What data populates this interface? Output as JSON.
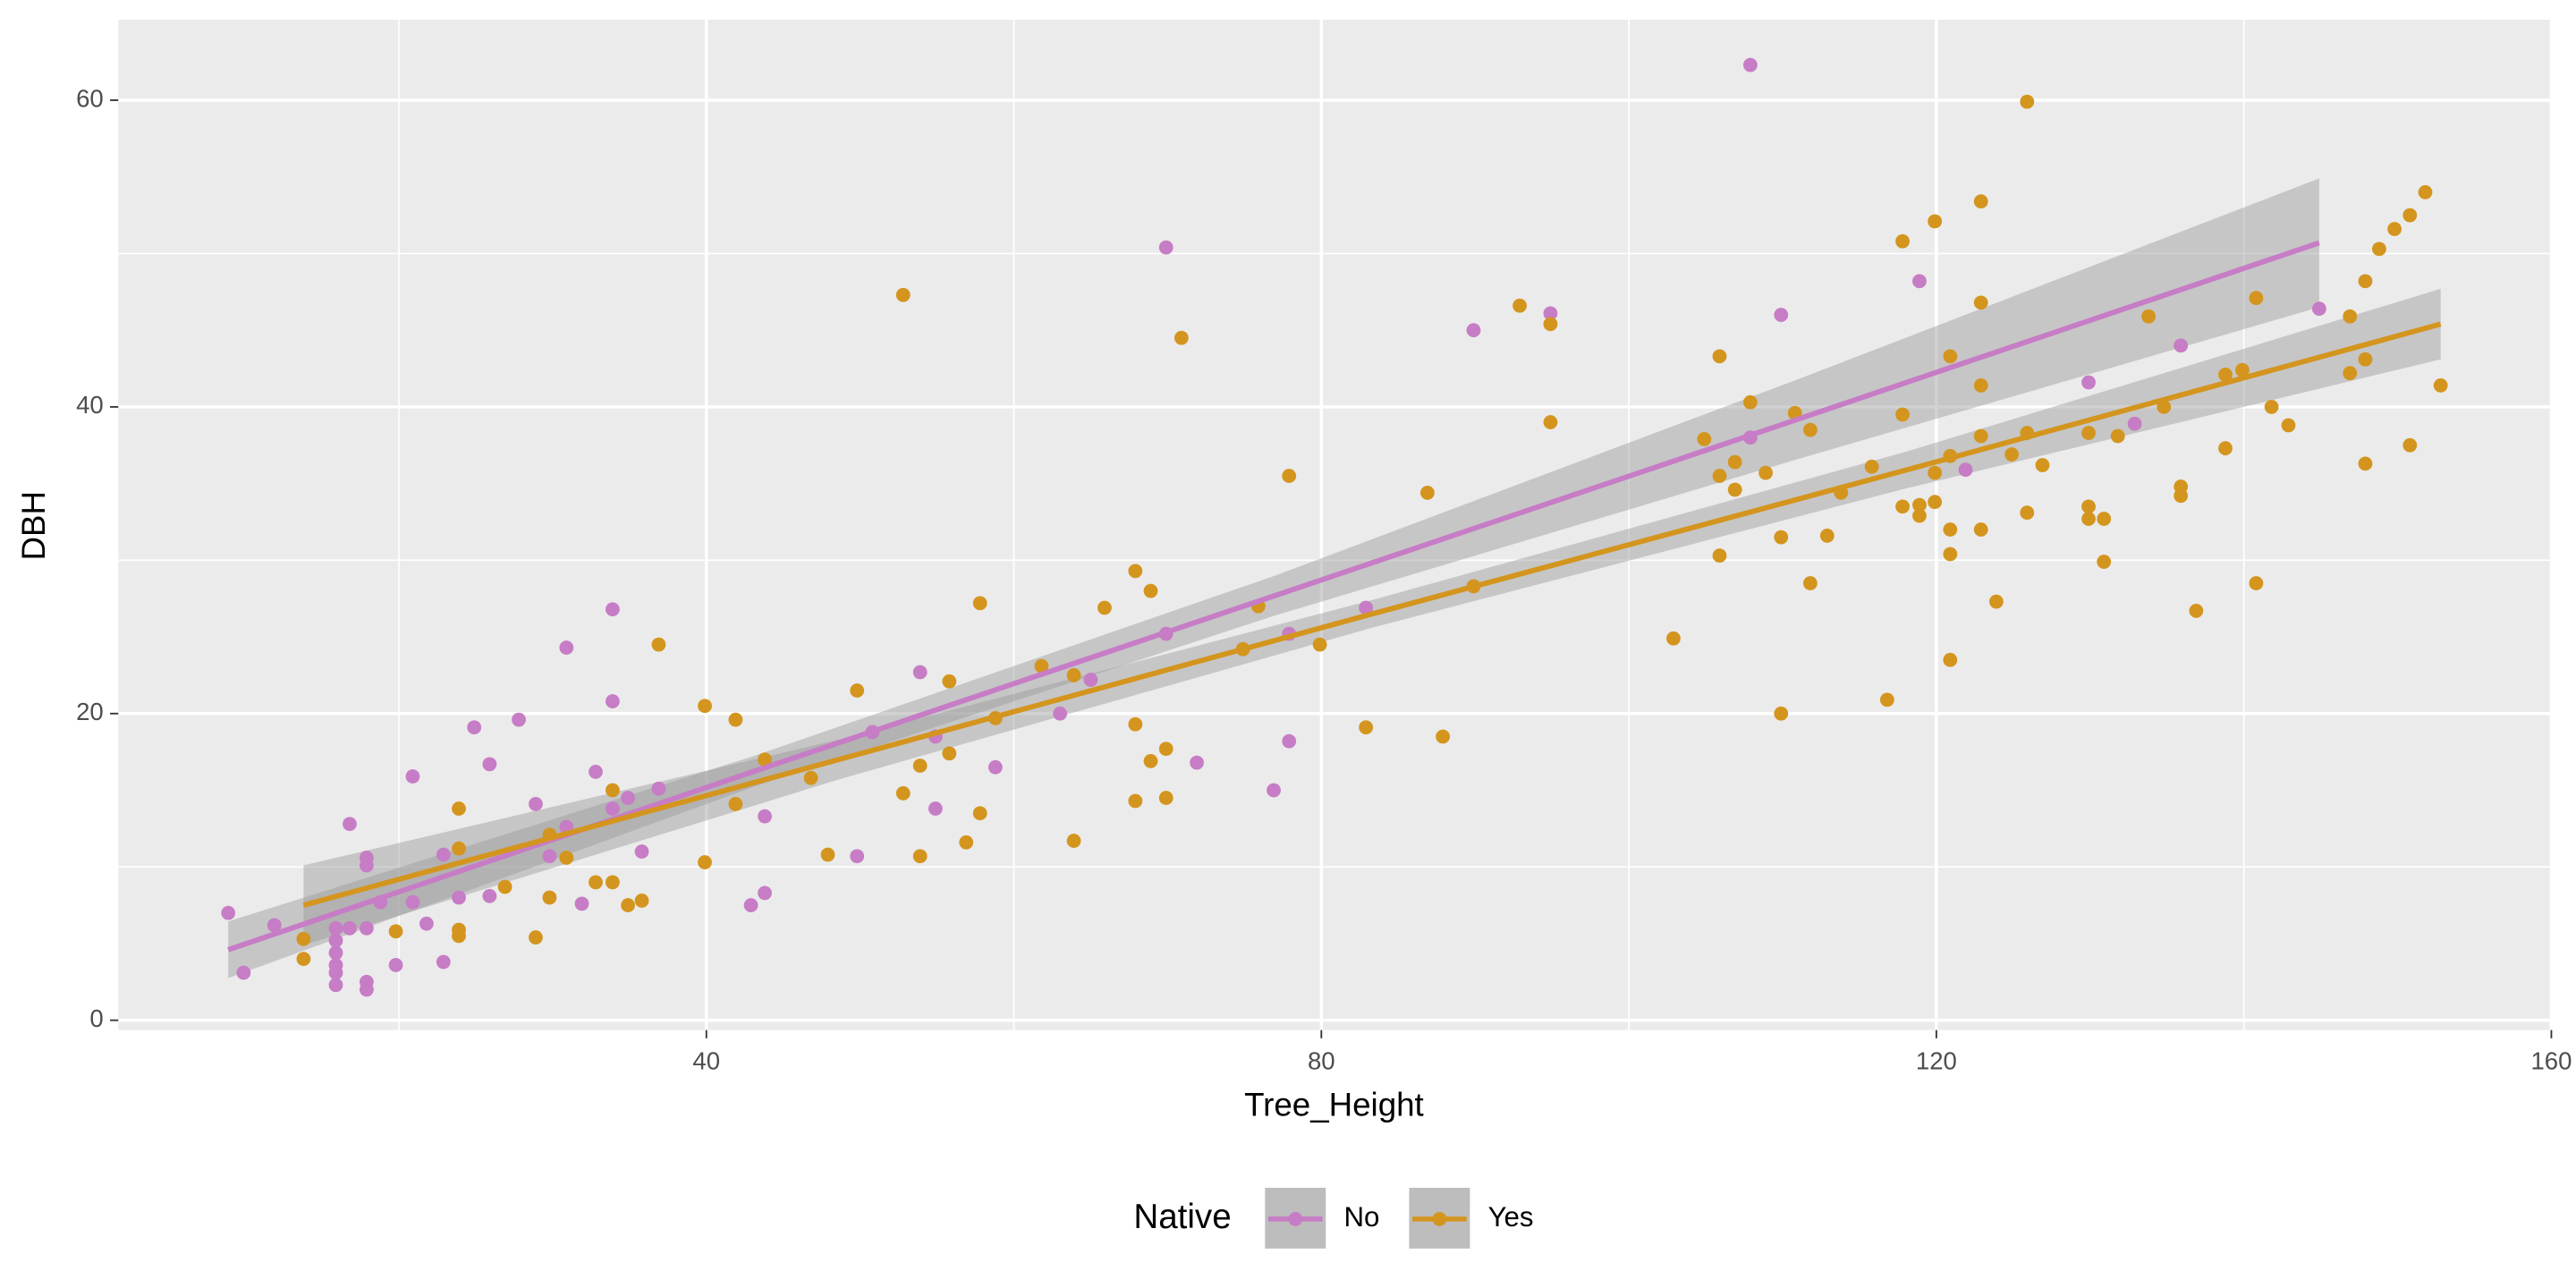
{
  "chart_data": {
    "type": "scatter",
    "xlabel": "Tree_Height",
    "ylabel": "DBH",
    "legend_title": "Native",
    "legend_position": "bottom",
    "grid": true,
    "xlim": [
      1.75,
      160
    ],
    "ylim": [
      -0.64,
      65.25
    ],
    "xticks": [
      40,
      80,
      120,
      160
    ],
    "yticks": [
      0,
      20,
      40,
      60
    ],
    "x_minor_ticks": [
      20,
      60,
      100,
      140
    ],
    "y_minor_ticks": [
      10,
      30,
      50
    ],
    "series": [
      {
        "name": "No",
        "color": "#c77cc6",
        "x": [
          8.9,
          9.9,
          11.9,
          15.9,
          15.9,
          15.9,
          15.9,
          15.9,
          15.9,
          16.8,
          16.8,
          17.9,
          17.9,
          17.9,
          17.9,
          17.9,
          18.8,
          19.8,
          20.9,
          20.9,
          21.8,
          22.9,
          22.9,
          23.9,
          24.9,
          25.9,
          25.9,
          27.8,
          28.9,
          29.8,
          30.9,
          30.9,
          31.9,
          32.8,
          33.9,
          33.9,
          33.9,
          34.9,
          35.8,
          36.9,
          42.9,
          43.8,
          43.8,
          49.8,
          50.8,
          53.9,
          54.9,
          54.9,
          58.8,
          63.0,
          65.0,
          69.9,
          69.9,
          71.9,
          76.9,
          77.9,
          77.9,
          82.9,
          89.9,
          94.9,
          107.9,
          107.9,
          109.9,
          118.9,
          121.9,
          129.9,
          132.9,
          135.9,
          144.9
        ],
        "values": [
          7.0,
          3.1,
          6.2,
          6.0,
          5.2,
          4.4,
          3.6,
          3.1,
          2.3,
          12.8,
          6.0,
          10.6,
          10.1,
          6.0,
          2.5,
          2.0,
          7.7,
          3.6,
          15.9,
          7.7,
          6.3,
          10.8,
          3.8,
          8.0,
          19.1,
          16.7,
          8.1,
          19.6,
          14.1,
          10.7,
          24.3,
          12.6,
          7.6,
          16.2,
          26.8,
          20.8,
          13.8,
          14.5,
          11.0,
          15.1,
          7.5,
          13.3,
          8.3,
          10.7,
          18.8,
          22.7,
          13.8,
          18.5,
          16.5,
          20.0,
          22.2,
          50.4,
          25.2,
          16.8,
          15.0,
          18.2,
          25.2,
          26.9,
          45.0,
          46.1,
          62.3,
          38.0,
          46.0,
          48.2,
          35.9,
          41.6,
          38.9,
          44.0,
          46.4
        ],
        "trend": {
          "x": [
            8.9,
            43,
            77,
            111,
            144.9
          ],
          "y": [
            4.6,
            16.2,
            27.7,
            39.2,
            50.7
          ],
          "lower": [
            2.75,
            15.2,
            26.4,
            36.6,
            46.5
          ],
          "upper": [
            6.45,
            17.2,
            29.0,
            41.8,
            54.9
          ]
        }
      },
      {
        "name": "Yes",
        "color": "#d4951e",
        "x": [
          13.8,
          13.8,
          19.8,
          23.9,
          23.9,
          23.9,
          23.9,
          26.9,
          28.9,
          29.8,
          29.8,
          30.9,
          32.8,
          33.9,
          33.9,
          34.9,
          35.8,
          36.9,
          39.9,
          39.9,
          41.9,
          41.9,
          43.8,
          46.8,
          47.9,
          49.8,
          52.8,
          52.8,
          53.9,
          53.9,
          55.8,
          55.8,
          56.9,
          57.8,
          57.8,
          58.8,
          61.8,
          63.9,
          63.9,
          65.9,
          67.9,
          67.9,
          67.9,
          68.9,
          68.9,
          69.9,
          69.9,
          70.9,
          74.9,
          75.9,
          77.9,
          79.9,
          82.9,
          86.9,
          87.9,
          89.9,
          92.9,
          94.9,
          94.9,
          102.9,
          104.9,
          105.9,
          105.9,
          105.9,
          106.9,
          106.9,
          107.9,
          108.9,
          109.9,
          109.9,
          110.8,
          111.8,
          111.8,
          112.9,
          113.8,
          115.8,
          116.8,
          117.8,
          117.8,
          117.8,
          118.9,
          118.9,
          119.9,
          119.9,
          119.9,
          120.9,
          120.9,
          120.9,
          120.9,
          120.9,
          122.9,
          122.9,
          122.9,
          122.9,
          122.9,
          123.9,
          124.9,
          125.9,
          125.9,
          125.9,
          126.9,
          129.9,
          129.9,
          129.9,
          130.9,
          130.9,
          131.8,
          133.8,
          134.8,
          135.9,
          135.9,
          136.9,
          138.8,
          138.8,
          139.9,
          140.8,
          140.8,
          141.8,
          142.9,
          146.9,
          146.9,
          147.9,
          147.9,
          147.9,
          148.8,
          149.8,
          150.8,
          150.8,
          151.8,
          152.8
        ],
        "values": [
          5.3,
          4.0,
          5.8,
          13.8,
          11.2,
          5.9,
          5.5,
          8.7,
          5.4,
          12.1,
          8.0,
          10.6,
          9.0,
          15.0,
          9.0,
          7.5,
          7.8,
          24.5,
          20.5,
          10.3,
          19.6,
          14.1,
          17.0,
          15.8,
          10.8,
          21.5,
          47.3,
          14.8,
          16.6,
          10.7,
          22.1,
          17.4,
          11.6,
          27.2,
          13.5,
          19.7,
          23.1,
          11.7,
          22.5,
          26.9,
          29.3,
          19.3,
          14.3,
          28.0,
          16.9,
          17.7,
          14.5,
          44.5,
          24.2,
          27.0,
          35.5,
          24.5,
          19.1,
          34.4,
          18.5,
          28.3,
          46.6,
          45.4,
          39.0,
          24.9,
          37.9,
          43.3,
          35.5,
          30.3,
          36.4,
          34.6,
          40.3,
          35.7,
          31.5,
          20.0,
          39.6,
          38.5,
          28.5,
          31.6,
          34.4,
          36.1,
          20.9,
          50.8,
          39.5,
          33.5,
          33.6,
          32.9,
          52.1,
          35.7,
          33.8,
          43.3,
          36.8,
          32.0,
          30.4,
          23.5,
          53.4,
          46.8,
          41.4,
          38.1,
          32.0,
          27.3,
          36.9,
          59.9,
          38.3,
          33.1,
          36.2,
          38.3,
          33.5,
          32.7,
          32.7,
          29.9,
          38.1,
          45.9,
          40.0,
          34.8,
          34.2,
          26.7,
          42.1,
          37.3,
          42.4,
          47.1,
          28.5,
          40.0,
          38.8,
          45.9,
          42.2,
          48.2,
          43.1,
          36.3,
          50.3,
          51.6,
          52.5,
          37.5,
          54.0,
          41.4
        ],
        "trend": {
          "x": [
            13.8,
            48.6,
            83.3,
            118.1,
            152.8
          ],
          "y": [
            7.5,
            17.0,
            26.5,
            35.9,
            45.4
          ],
          "lower": [
            4.9,
            15.7,
            25.6,
            34.7,
            43.1
          ],
          "upper": [
            10.1,
            18.3,
            27.4,
            37.1,
            47.7
          ]
        }
      }
    ]
  }
}
